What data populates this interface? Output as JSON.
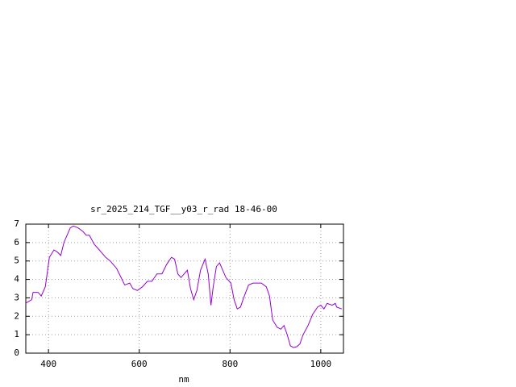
{
  "chart_data": {
    "type": "line",
    "title": "sr_2025_214_TGF__y03_r_rad 18-46-00",
    "x_label": "nm",
    "x": [
      349,
      363,
      366,
      377,
      384,
      393,
      402,
      412,
      419,
      427,
      434,
      448,
      455,
      465,
      476,
      483,
      490,
      501,
      512,
      526,
      536,
      550,
      558,
      568,
      579,
      586,
      596,
      607,
      618,
      628,
      639,
      650,
      660,
      671,
      678,
      685,
      692,
      699,
      706,
      713,
      720,
      727,
      735,
      745,
      752,
      758,
      763,
      770,
      777,
      784,
      791,
      802,
      809,
      816,
      823,
      830,
      841,
      851,
      858,
      869,
      880,
      887,
      894,
      904,
      912,
      919,
      926,
      933,
      940,
      947,
      954,
      961,
      972,
      982,
      993,
      1000,
      1007,
      1014,
      1025,
      1032,
      1035,
      1046
    ],
    "series": [
      {
        "color": "#9400d3",
        "values": [
          2.7,
          2.9,
          3.3,
          3.3,
          3.1,
          3.6,
          5.2,
          5.6,
          5.5,
          5.3,
          6.0,
          6.8,
          6.9,
          6.8,
          6.6,
          6.4,
          6.4,
          5.9,
          5.6,
          5.2,
          5.0,
          4.6,
          4.2,
          3.7,
          3.8,
          3.5,
          3.4,
          3.6,
          3.9,
          3.9,
          4.3,
          4.3,
          4.8,
          5.2,
          5.1,
          4.3,
          4.1,
          4.3,
          4.5,
          3.5,
          2.9,
          3.4,
          4.5,
          5.1,
          4.3,
          2.6,
          3.6,
          4.7,
          4.9,
          4.5,
          4.1,
          3.8,
          2.9,
          2.4,
          2.5,
          3.0,
          3.7,
          3.8,
          3.8,
          3.8,
          3.6,
          3.1,
          1.8,
          1.4,
          1.3,
          1.5,
          1.0,
          0.4,
          0.3,
          0.35,
          0.5,
          1.0,
          1.5,
          2.1,
          2.5,
          2.6,
          2.4,
          2.7,
          2.6,
          2.7,
          2.5,
          2.4
        ]
      }
    ],
    "xlim": [
      350,
      1050
    ],
    "xticks": [
      400,
      600,
      800,
      1000
    ],
    "ylim": [
      0,
      7
    ],
    "yticks": [
      0,
      1,
      2,
      3,
      4,
      5,
      6,
      7
    ],
    "grid": true
  }
}
